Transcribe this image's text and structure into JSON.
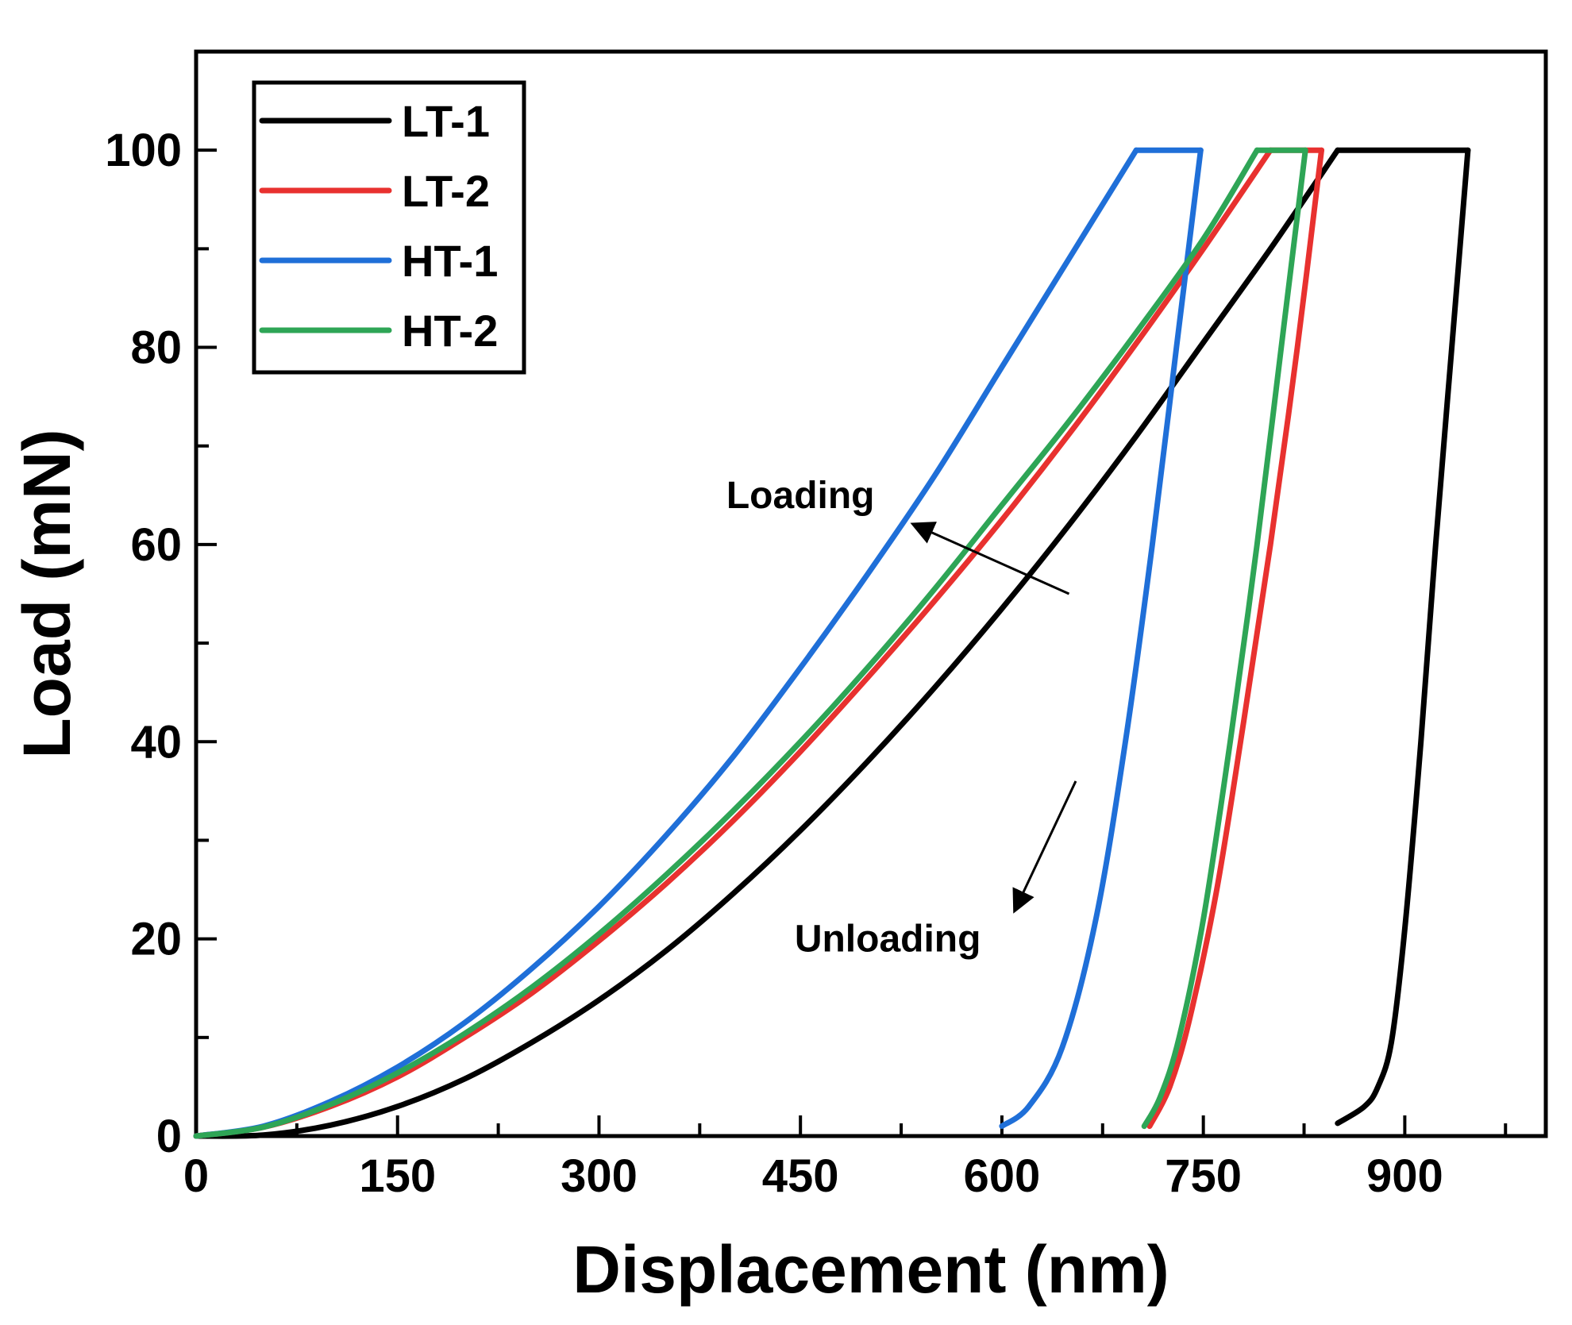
{
  "chart_data": {
    "type": "line",
    "title": "",
    "xlabel": "Displacement (nm)",
    "ylabel": "Load (mN)",
    "xlim": [
      0,
      1005
    ],
    "ylim": [
      0,
      110
    ],
    "xticks": [
      0,
      150,
      300,
      450,
      600,
      750,
      900
    ],
    "yticks": [
      0,
      20,
      40,
      60,
      80,
      100
    ],
    "legend": {
      "location": "top-left",
      "entries": [
        "LT-1",
        "LT-2",
        "HT-1",
        "HT-2"
      ]
    },
    "series": [
      {
        "name": "LT-1",
        "color": "#000000",
        "loading": [
          [
            0,
            0
          ],
          [
            50,
            0.1
          ],
          [
            100,
            1.1
          ],
          [
            150,
            3.0
          ],
          [
            200,
            5.8
          ],
          [
            250,
            9.5
          ],
          [
            300,
            13.8
          ],
          [
            350,
            18.8
          ],
          [
            400,
            24.6
          ],
          [
            450,
            31.0
          ],
          [
            500,
            38.0
          ],
          [
            550,
            45.5
          ],
          [
            600,
            53.5
          ],
          [
            650,
            62.0
          ],
          [
            700,
            71.0
          ],
          [
            750,
            80.5
          ],
          [
            800,
            90.0
          ],
          [
            850,
            100.0
          ]
        ],
        "hold": [
          [
            850,
            100
          ],
          [
            947,
            100
          ]
        ],
        "unloading": [
          [
            947,
            100
          ],
          [
            935,
            80
          ],
          [
            923,
            60
          ],
          [
            912,
            40
          ],
          [
            900,
            21
          ],
          [
            890,
            9.5
          ],
          [
            880,
            5
          ],
          [
            870,
            3
          ],
          [
            850,
            1.3
          ]
        ]
      },
      {
        "name": "LT-2",
        "color": "#e8312f",
        "loading": [
          [
            0,
            0
          ],
          [
            50,
            0.9
          ],
          [
            100,
            3.0
          ],
          [
            150,
            6.0
          ],
          [
            200,
            10.0
          ],
          [
            250,
            14.5
          ],
          [
            300,
            19.8
          ],
          [
            350,
            25.6
          ],
          [
            400,
            32.0
          ],
          [
            450,
            39.0
          ],
          [
            500,
            46.5
          ],
          [
            550,
            54.3
          ],
          [
            600,
            62.5
          ],
          [
            650,
            71.2
          ],
          [
            700,
            80.4
          ],
          [
            750,
            90.0
          ],
          [
            800,
            100
          ]
        ],
        "hold": [
          [
            800,
            100
          ],
          [
            838,
            100
          ]
        ],
        "unloading": [
          [
            838,
            100
          ],
          [
            820,
            80
          ],
          [
            800,
            60
          ],
          [
            780,
            42
          ],
          [
            760,
            25
          ],
          [
            740,
            12
          ],
          [
            725,
            5
          ],
          [
            710,
            1
          ]
        ]
      },
      {
        "name": "HT-1",
        "color": "#1f6fd8",
        "loading": [
          [
            0,
            0
          ],
          [
            50,
            1.0
          ],
          [
            100,
            3.5
          ],
          [
            150,
            7.0
          ],
          [
            200,
            11.5
          ],
          [
            250,
            17.0
          ],
          [
            300,
            23.3
          ],
          [
            350,
            30.5
          ],
          [
            400,
            38.5
          ],
          [
            450,
            47.5
          ],
          [
            500,
            57.0
          ],
          [
            550,
            67.0
          ],
          [
            600,
            78.0
          ],
          [
            650,
            89.0
          ],
          [
            700,
            100
          ]
        ],
        "hold": [
          [
            700,
            100
          ],
          [
            748,
            100
          ]
        ],
        "unloading": [
          [
            748,
            100
          ],
          [
            730,
            80
          ],
          [
            712,
            60
          ],
          [
            692,
            40
          ],
          [
            670,
            22
          ],
          [
            645,
            9
          ],
          [
            620,
            3
          ],
          [
            600,
            1
          ]
        ]
      },
      {
        "name": "HT-2",
        "color": "#2ea556",
        "loading": [
          [
            0,
            0
          ],
          [
            50,
            0.9
          ],
          [
            100,
            3.2
          ],
          [
            150,
            6.4
          ],
          [
            200,
            10.4
          ],
          [
            250,
            15.1
          ],
          [
            300,
            20.5
          ],
          [
            350,
            26.5
          ],
          [
            400,
            33.0
          ],
          [
            450,
            40.0
          ],
          [
            500,
            47.5
          ],
          [
            550,
            55.5
          ],
          [
            600,
            64.0
          ],
          [
            650,
            72.5
          ],
          [
            700,
            81.5
          ],
          [
            750,
            91.0
          ],
          [
            790,
            100
          ]
        ],
        "hold": [
          [
            790,
            100
          ],
          [
            826,
            100
          ]
        ],
        "unloading": [
          [
            826,
            100
          ],
          [
            808,
            80
          ],
          [
            790,
            60
          ],
          [
            770,
            40
          ],
          [
            750,
            22
          ],
          [
            732,
            10
          ],
          [
            718,
            4
          ],
          [
            706,
            1
          ]
        ]
      }
    ],
    "annotations": [
      {
        "text": "Loading",
        "x": 450,
        "y": 65,
        "arrow_from": [
          650,
          55
        ],
        "arrow_to": [
          535,
          62
        ]
      },
      {
        "text": "Unloading",
        "x": 515,
        "y": 20,
        "arrow_from": [
          655,
          36
        ],
        "arrow_to": [
          610,
          23
        ]
      }
    ]
  }
}
